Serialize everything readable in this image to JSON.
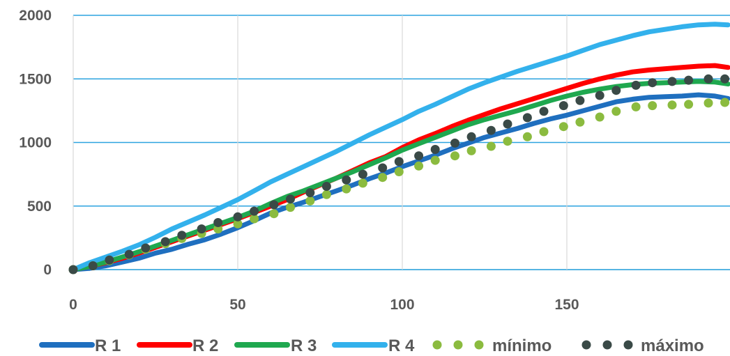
{
  "chart_data": {
    "type": "line",
    "title": "",
    "xlabel": "",
    "ylabel": "",
    "xlim": [
      0,
      200
    ],
    "ylim": [
      0,
      2000
    ],
    "x_ticks": [
      0,
      50,
      100,
      150
    ],
    "y_ticks": [
      0,
      500,
      1000,
      1500,
      2000
    ],
    "grid": "both",
    "legend_position": "bottom",
    "series": [
      {
        "name": "R 1",
        "style": "line",
        "color": "#1f6fbf",
        "x": [
          0,
          5,
          10,
          15,
          20,
          25,
          30,
          35,
          40,
          45,
          50,
          55,
          60,
          65,
          70,
          75,
          80,
          85,
          90,
          95,
          100,
          105,
          110,
          115,
          120,
          125,
          130,
          135,
          140,
          145,
          150,
          155,
          160,
          165,
          170,
          175,
          180,
          185,
          190,
          195,
          199
        ],
        "values": [
          0,
          10,
          30,
          60,
          90,
          130,
          160,
          200,
          235,
          280,
          330,
          385,
          445,
          490,
          530,
          575,
          620,
          665,
          715,
          760,
          810,
          855,
          900,
          950,
          995,
          1040,
          1075,
          1110,
          1150,
          1185,
          1215,
          1250,
          1285,
          1320,
          1340,
          1355,
          1360,
          1365,
          1375,
          1365,
          1345
        ]
      },
      {
        "name": "R 2",
        "style": "line",
        "color": "#ff0000",
        "x": [
          0,
          5,
          10,
          15,
          20,
          25,
          30,
          35,
          40,
          45,
          50,
          55,
          60,
          65,
          70,
          75,
          80,
          85,
          90,
          95,
          100,
          105,
          110,
          115,
          120,
          125,
          130,
          135,
          140,
          145,
          150,
          155,
          160,
          165,
          170,
          175,
          180,
          185,
          190,
          195,
          199
        ],
        "values": [
          0,
          25,
          55,
          90,
          130,
          175,
          220,
          265,
          310,
          355,
          400,
          450,
          500,
          550,
          610,
          665,
          720,
          780,
          840,
          890,
          960,
          1020,
          1070,
          1125,
          1175,
          1220,
          1265,
          1305,
          1345,
          1385,
          1425,
          1465,
          1500,
          1530,
          1555,
          1570,
          1580,
          1590,
          1600,
          1605,
          1590
        ]
      },
      {
        "name": "R 3",
        "style": "line",
        "color": "#1fa84f",
        "x": [
          0,
          5,
          10,
          15,
          20,
          25,
          30,
          35,
          40,
          45,
          50,
          55,
          60,
          65,
          70,
          75,
          80,
          85,
          90,
          95,
          100,
          105,
          110,
          115,
          120,
          125,
          130,
          135,
          140,
          145,
          150,
          155,
          160,
          165,
          170,
          175,
          180,
          185,
          190,
          195,
          199
        ],
        "values": [
          0,
          25,
          60,
          100,
          140,
          185,
          230,
          275,
          320,
          365,
          410,
          460,
          520,
          575,
          620,
          670,
          720,
          770,
          825,
          880,
          940,
          990,
          1040,
          1090,
          1140,
          1180,
          1215,
          1250,
          1290,
          1330,
          1365,
          1395,
          1420,
          1440,
          1455,
          1465,
          1470,
          1475,
          1480,
          1475,
          1460
        ]
      },
      {
        "name": "R 4",
        "style": "line",
        "color": "#33b1ec",
        "x": [
          0,
          5,
          10,
          15,
          20,
          25,
          30,
          35,
          40,
          45,
          50,
          55,
          60,
          65,
          70,
          75,
          80,
          85,
          90,
          95,
          100,
          105,
          110,
          115,
          120,
          125,
          130,
          135,
          140,
          145,
          150,
          155,
          160,
          165,
          170,
          175,
          180,
          185,
          190,
          195,
          199
        ],
        "values": [
          0,
          55,
          100,
          145,
          195,
          255,
          320,
          375,
          430,
          490,
          550,
          620,
          690,
          750,
          810,
          870,
          930,
          995,
          1060,
          1120,
          1180,
          1245,
          1300,
          1360,
          1420,
          1470,
          1515,
          1560,
          1600,
          1640,
          1680,
          1725,
          1770,
          1805,
          1840,
          1870,
          1890,
          1910,
          1925,
          1930,
          1925
        ]
      },
      {
        "name": "mínimo",
        "style": "dots",
        "color": "#8bbb3f",
        "x": [
          0,
          6,
          11,
          17,
          22,
          28,
          33,
          39,
          44,
          50,
          55,
          61,
          66,
          72,
          77,
          83,
          88,
          94,
          99,
          105,
          110,
          116,
          121,
          127,
          132,
          138,
          143,
          149,
          154,
          160,
          165,
          171,
          176,
          182,
          187,
          193,
          198
        ],
        "values": [
          0,
          30,
          70,
          115,
          160,
          205,
          245,
          285,
          320,
          360,
          400,
          440,
          490,
          540,
          590,
          635,
          680,
          725,
          770,
          815,
          860,
          895,
          935,
          970,
          1010,
          1045,
          1085,
          1125,
          1160,
          1200,
          1245,
          1280,
          1290,
          1295,
          1300,
          1310,
          1315
        ]
      },
      {
        "name": "máximo",
        "style": "dots",
        "color": "#3a4a47",
        "x": [
          0,
          6,
          11,
          17,
          22,
          28,
          33,
          39,
          44,
          50,
          55,
          61,
          66,
          72,
          77,
          83,
          88,
          94,
          99,
          105,
          110,
          116,
          121,
          127,
          132,
          138,
          143,
          149,
          154,
          160,
          165,
          171,
          176,
          182,
          187,
          193,
          198
        ],
        "values": [
          0,
          30,
          75,
          120,
          170,
          220,
          270,
          320,
          370,
          415,
          460,
          510,
          555,
          605,
          655,
          705,
          750,
          800,
          850,
          895,
          945,
          995,
          1045,
          1095,
          1145,
          1195,
          1245,
          1290,
          1330,
          1370,
          1410,
          1450,
          1470,
          1480,
          1490,
          1500,
          1500
        ]
      }
    ]
  }
}
